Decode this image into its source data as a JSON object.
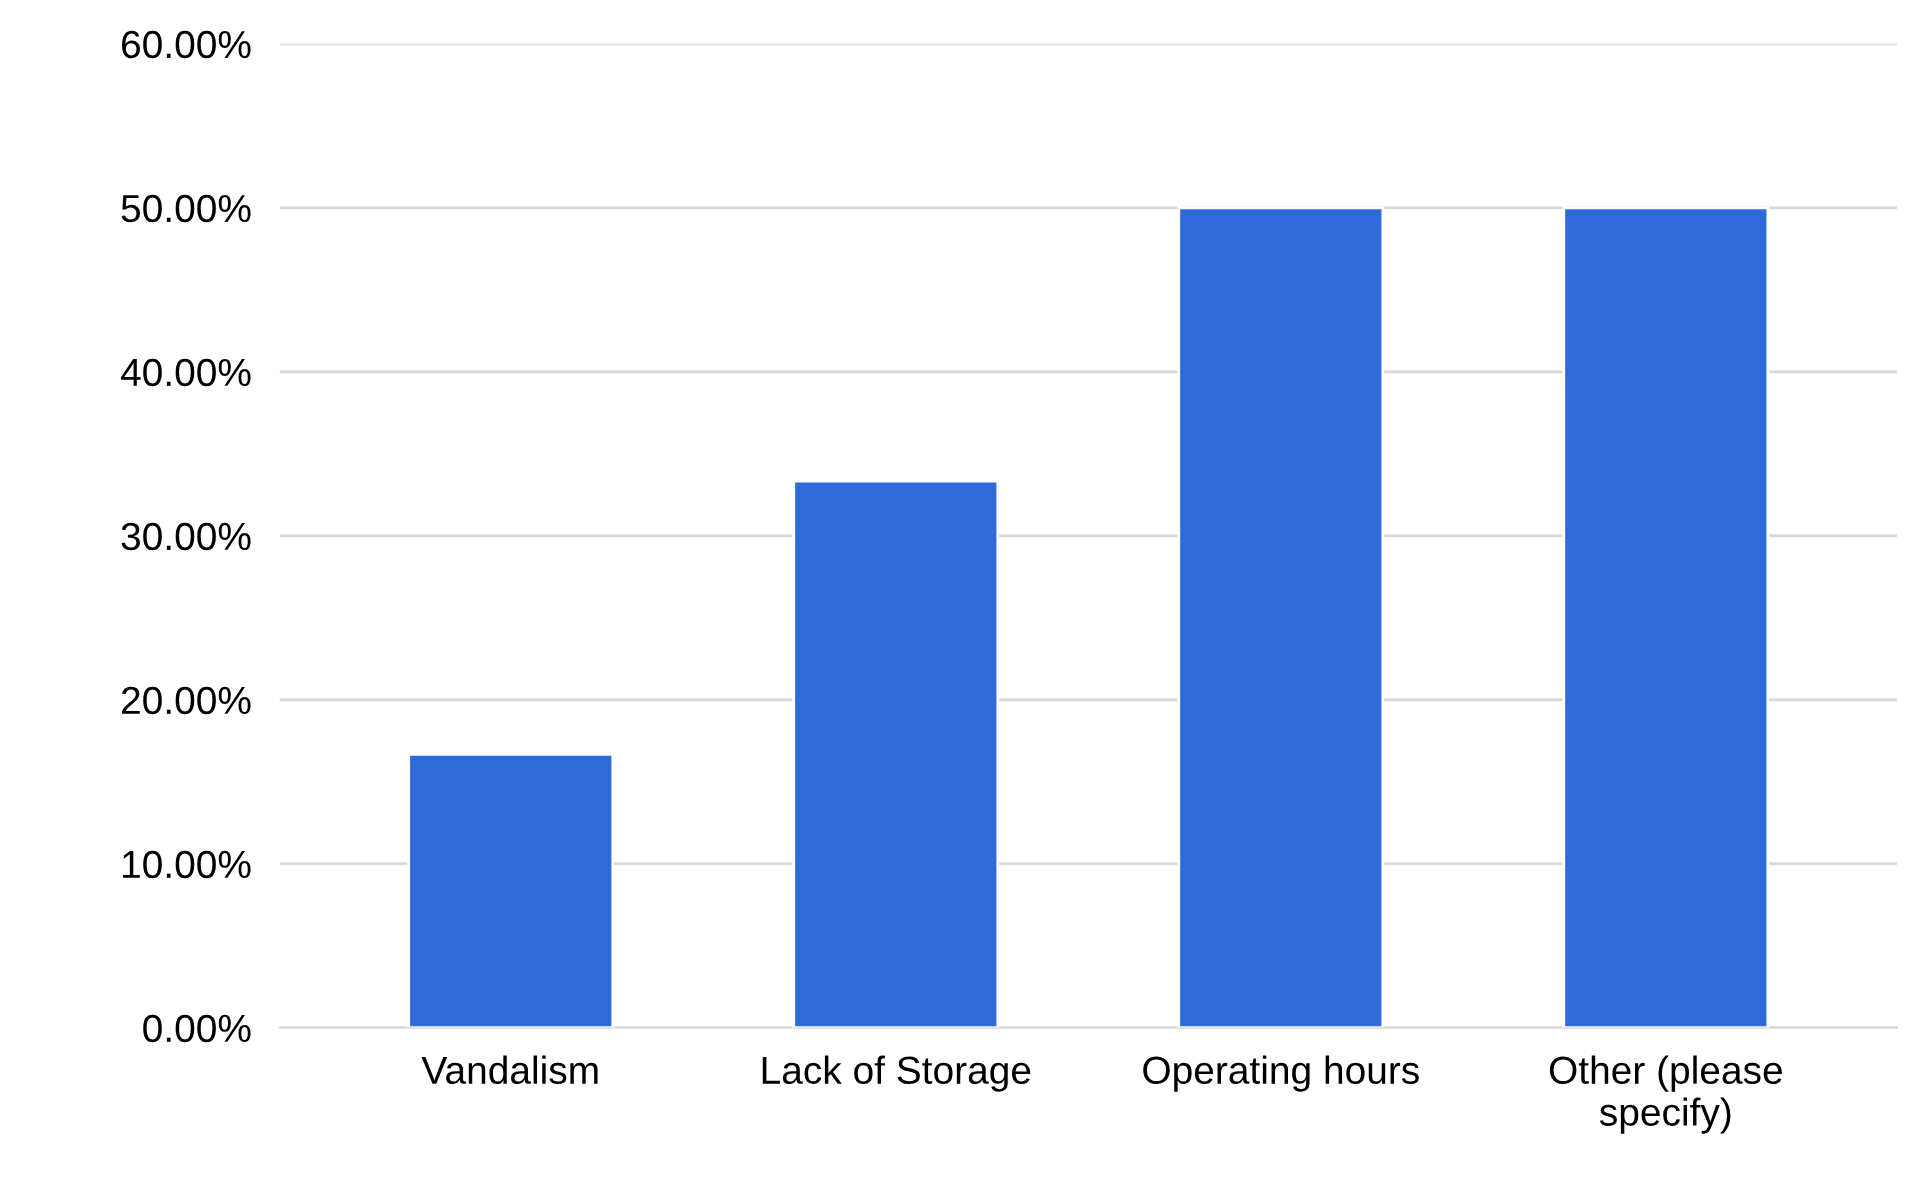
{
  "chart_data": {
    "type": "bar",
    "categories": [
      "Vandalism",
      "Lack of Storage",
      "Operating hours",
      "Other (please\nspecify)"
    ],
    "values": [
      16.67,
      33.33,
      50,
      50
    ],
    "color": "#2f6bd8",
    "ylim": [
      0,
      60
    ],
    "yticks": [
      {
        "value": 0,
        "label": "0.00%"
      },
      {
        "value": 10,
        "label": "10.00%"
      },
      {
        "value": 20,
        "label": "20.00%"
      },
      {
        "value": 30,
        "label": "30.00%"
      },
      {
        "value": 40,
        "label": "40.00%"
      },
      {
        "value": 50,
        "label": "50.00%"
      },
      {
        "value": 60,
        "label": "60.00%"
      }
    ],
    "grid": "y",
    "legend": false
  }
}
